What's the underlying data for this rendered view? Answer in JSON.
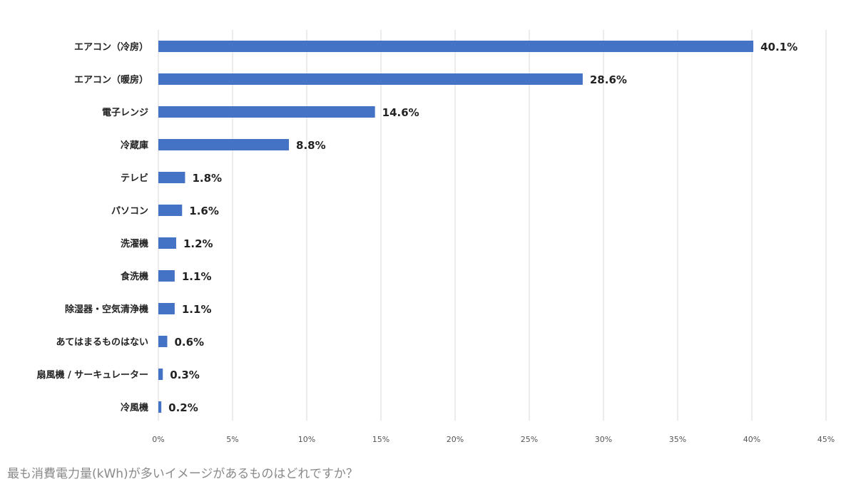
{
  "caption": "最も消費電力量(kWh)が多いイメージがあるものはどれですか？",
  "colors": {
    "bar": "#4472c4",
    "grid": "#d9d9d9"
  },
  "chart_data": {
    "type": "bar",
    "orientation": "horizontal",
    "categories": [
      "エアコン（冷房）",
      "エアコン（暖房）",
      "電子レンジ",
      "冷蔵庫",
      "テレビ",
      "パソコン",
      "洗濯機",
      "食洗機",
      "除湿器・空気清浄機",
      "あてはまるものはない",
      "扇風機 / サーキュレーター",
      "冷風機"
    ],
    "values": [
      40.1,
      28.6,
      14.6,
      8.8,
      1.8,
      1.6,
      1.2,
      1.1,
      1.1,
      0.6,
      0.3,
      0.2
    ],
    "value_labels": [
      "40.1%",
      "28.6%",
      "14.6%",
      "8.8%",
      "1.8%",
      "1.6%",
      "1.2%",
      "1.1%",
      "1.1%",
      "0.6%",
      "0.3%",
      "0.2%"
    ],
    "x_ticks": [
      "0%",
      "5%",
      "10%",
      "15%",
      "20%",
      "25%",
      "30%",
      "35%",
      "40%",
      "45%"
    ],
    "xlim": [
      0,
      45
    ],
    "grid": true,
    "legend": "none"
  }
}
